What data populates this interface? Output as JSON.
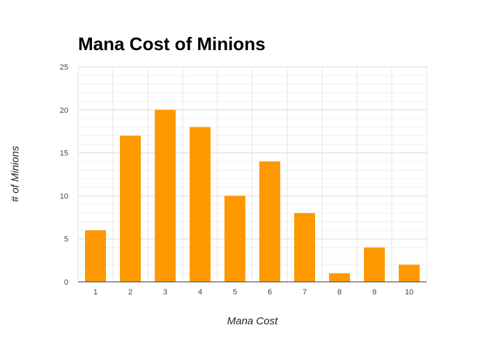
{
  "chart_data": {
    "type": "bar",
    "title": "Mana Cost of Minions",
    "xlabel": "Mana Cost",
    "ylabel": "# of Minions",
    "categories": [
      "1",
      "2",
      "3",
      "4",
      "5",
      "6",
      "7",
      "8",
      "9",
      "10"
    ],
    "values": [
      6,
      17,
      20,
      18,
      10,
      14,
      8,
      1,
      4,
      2
    ],
    "ylim": [
      0,
      25
    ],
    "yticks": [
      "0",
      "5",
      "10",
      "15",
      "20",
      "25"
    ],
    "grid": true,
    "legend": "none",
    "bar_color": "#ff9900"
  }
}
